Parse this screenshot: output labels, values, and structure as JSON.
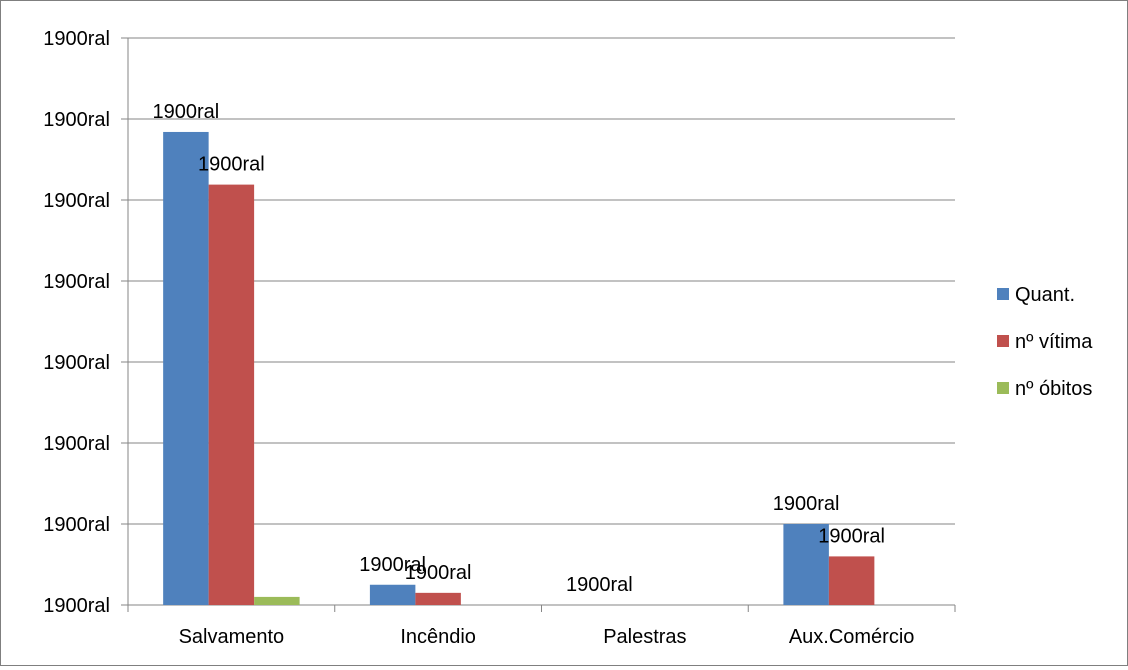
{
  "chart_data": {
    "type": "bar",
    "title": "",
    "xlabel": "",
    "ylabel": "",
    "categories": [
      "Salvamento",
      "Incêndio",
      "Palestras",
      "Aux.Comércio"
    ],
    "y_tick_labels": [
      "1900ral",
      "1900ral",
      "1900ral",
      "1900ral",
      "1900ral",
      "1900ral",
      "1900ral",
      "1900ral"
    ],
    "ylim": [
      0,
      7
    ],
    "grid": true,
    "legend_position": "right",
    "series": [
      {
        "name": "Quant.",
        "color": "#4f81bd",
        "values": [
          5.84,
          0.25,
          0,
          1.0
        ],
        "data_labels": [
          "1900ral",
          "1900ral",
          "1900ral",
          "1900ral"
        ]
      },
      {
        "name": "nº vítima",
        "color": "#c0504d",
        "values": [
          5.19,
          0.15,
          0,
          0.6
        ],
        "data_labels": [
          "1900ral",
          "1900ral",
          "",
          "1900ral"
        ]
      },
      {
        "name": "nº óbitos",
        "color": "#9bbb59",
        "values": [
          0.1,
          0,
          0,
          0
        ],
        "data_labels": [
          "",
          "",
          "",
          ""
        ]
      }
    ]
  }
}
